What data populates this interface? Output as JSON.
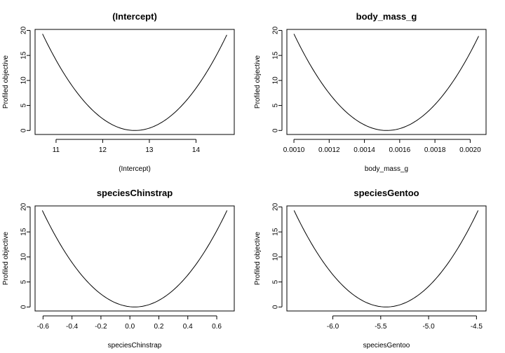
{
  "chart_data": [
    {
      "type": "line",
      "title": "(Intercept)",
      "xlabel": "(Intercept)",
      "ylabel": "Profiled objective",
      "xlim": [
        10.55,
        14.82
      ],
      "ylim": [
        -0.8,
        20.2
      ],
      "xticks": [
        11,
        12,
        13,
        14
      ],
      "xtick_labels": [
        "11",
        "12",
        "13",
        "14"
      ],
      "yticks": [
        0,
        5,
        10,
        15,
        20
      ],
      "ytick_labels": [
        "0",
        "5",
        "10",
        "15",
        "20"
      ],
      "curve": {
        "center": 12.69,
        "xmin": 10.71,
        "xmax": 14.66,
        "ymax": 19.3,
        "ymin": 0
      }
    },
    {
      "type": "line",
      "title": "body_mass_g",
      "xlabel": "body_mass_g",
      "ylabel": "Profiled objective",
      "xlim": [
        0.00096,
        0.00209
      ],
      "ylim": [
        -0.8,
        20.2
      ],
      "xticks": [
        0.001,
        0.0012,
        0.0014,
        0.0016,
        0.0018,
        0.002
      ],
      "xtick_labels": [
        "0.0010",
        "0.0012",
        "0.0014",
        "0.0016",
        "0.0018",
        "0.0020"
      ],
      "yticks": [
        0,
        5,
        10,
        15,
        20
      ],
      "ytick_labels": [
        "0",
        "5",
        "10",
        "15",
        "20"
      ],
      "curve": {
        "center": 0.001527,
        "xmin": 0.001,
        "xmax": 0.002048,
        "ymax": 19.3,
        "ymin": 0
      }
    },
    {
      "type": "line",
      "title": "speciesChinstrap",
      "xlabel": "speciesChinstrap",
      "ylabel": "Profiled objective",
      "xlim": [
        -0.655,
        0.721
      ],
      "ylim": [
        -0.8,
        20.2
      ],
      "xticks": [
        -0.6,
        -0.4,
        -0.2,
        0,
        0.2,
        0.4,
        0.6
      ],
      "xtick_labels": [
        "-0.6",
        "-0.4",
        "-0.2",
        "0.0",
        "0.2",
        "0.4",
        "0.6"
      ],
      "yticks": [
        0,
        5,
        10,
        15,
        20
      ],
      "ytick_labels": [
        "0",
        "5",
        "10",
        "15",
        "20"
      ],
      "curve": {
        "center": 0.033,
        "xmin": -0.605,
        "xmax": 0.671,
        "ymax": 19.3,
        "ymin": 0
      }
    },
    {
      "type": "line",
      "title": "speciesGentoo",
      "xlabel": "speciesGentoo",
      "ylabel": "Profiled objective",
      "xlim": [
        -6.48,
        -4.4
      ],
      "ylim": [
        -0.8,
        20.2
      ],
      "xticks": [
        -6.0,
        -5.5,
        -5.0,
        -4.5
      ],
      "xtick_labels": [
        "-6.0",
        "-5.5",
        "-5.0",
        "-4.5"
      ],
      "yticks": [
        0,
        5,
        10,
        15,
        20
      ],
      "ytick_labels": [
        "0",
        "5",
        "10",
        "15",
        "20"
      ],
      "curve": {
        "center": -5.444,
        "xmin": -6.405,
        "xmax": -4.483,
        "ymax": 19.3,
        "ymin": 0
      }
    }
  ]
}
